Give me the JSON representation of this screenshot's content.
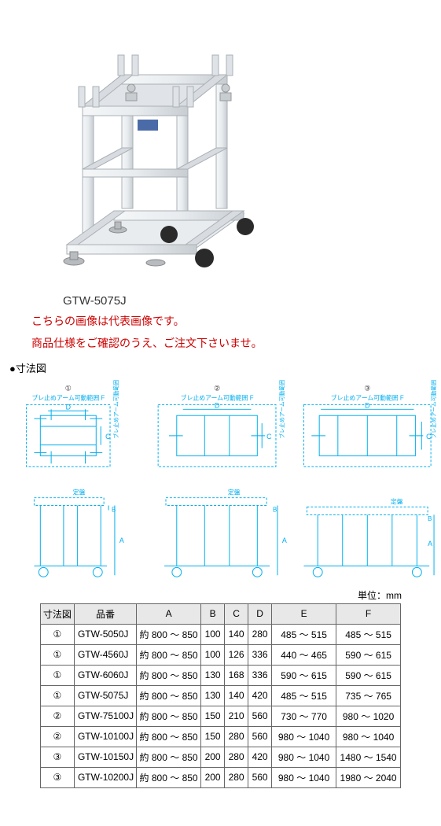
{
  "product_image": {
    "model_label": "GTW-5075J",
    "colors": {
      "frame": "#e8ecef",
      "frame_shadow": "#c8cdd2",
      "frame_highlight": "#f5f7f8",
      "caster": "#2a2a2a",
      "foot": "#b8bcc0",
      "label": "#4a6ba8"
    }
  },
  "notes": {
    "line1": "こちらの画像は代表画像です。",
    "line2": "商品仕様をご確認のうえ、ご注文下さいませ。"
  },
  "section_label": "●寸法図",
  "diagram_labels": {
    "circle1": "①",
    "circle2": "②",
    "circle3": "③",
    "arm_range": "ブレ止めアーム可動範囲 F",
    "arm_range_v": "ブレ止めアーム可動範囲 E",
    "plate": "定盤",
    "dim_a": "A",
    "dim_b": "B",
    "dim_c": "C",
    "dim_d": "D"
  },
  "diagram_colors": {
    "line": "#00aeef",
    "dash": "#00aeef",
    "text": "#333333"
  },
  "unit_label": "単位：mm",
  "table": {
    "headers": [
      "寸法図",
      "品番",
      "A",
      "B",
      "C",
      "D",
      "E",
      "F"
    ],
    "rows": [
      [
        "①",
        "GTW-5050J",
        "約 800 ～ 850",
        "100",
        "140",
        "280",
        "485 ～  515",
        "485 ～  515"
      ],
      [
        "①",
        "GTW-4560J",
        "約 800 ～ 850",
        "100",
        "126",
        "336",
        "440 ～  465",
        "590 ～  615"
      ],
      [
        "①",
        "GTW-6060J",
        "約 800 ～ 850",
        "130",
        "168",
        "336",
        "590 ～  615",
        "590 ～  615"
      ],
      [
        "①",
        "GTW-5075J",
        "約 800 ～ 850",
        "130",
        "140",
        "420",
        "485 ～  515",
        "735 ～  765"
      ],
      [
        "②",
        "GTW-75100J",
        "約 800 ～ 850",
        "150",
        "210",
        "560",
        "730 ～  770",
        "980 ～ 1020"
      ],
      [
        "②",
        "GTW-10100J",
        "約 800 ～ 850",
        "150",
        "280",
        "560",
        "980 ～ 1040",
        "980 ～ 1040"
      ],
      [
        "③",
        "GTW-10150J",
        "約 800 ～ 850",
        "200",
        "280",
        "420",
        "980 ～ 1040",
        "1480 ～ 1540"
      ],
      [
        "③",
        "GTW-10200J",
        "約 800 ～ 850",
        "200",
        "280",
        "560",
        "980 ～ 1040",
        "1980 ～ 2040"
      ]
    ]
  }
}
